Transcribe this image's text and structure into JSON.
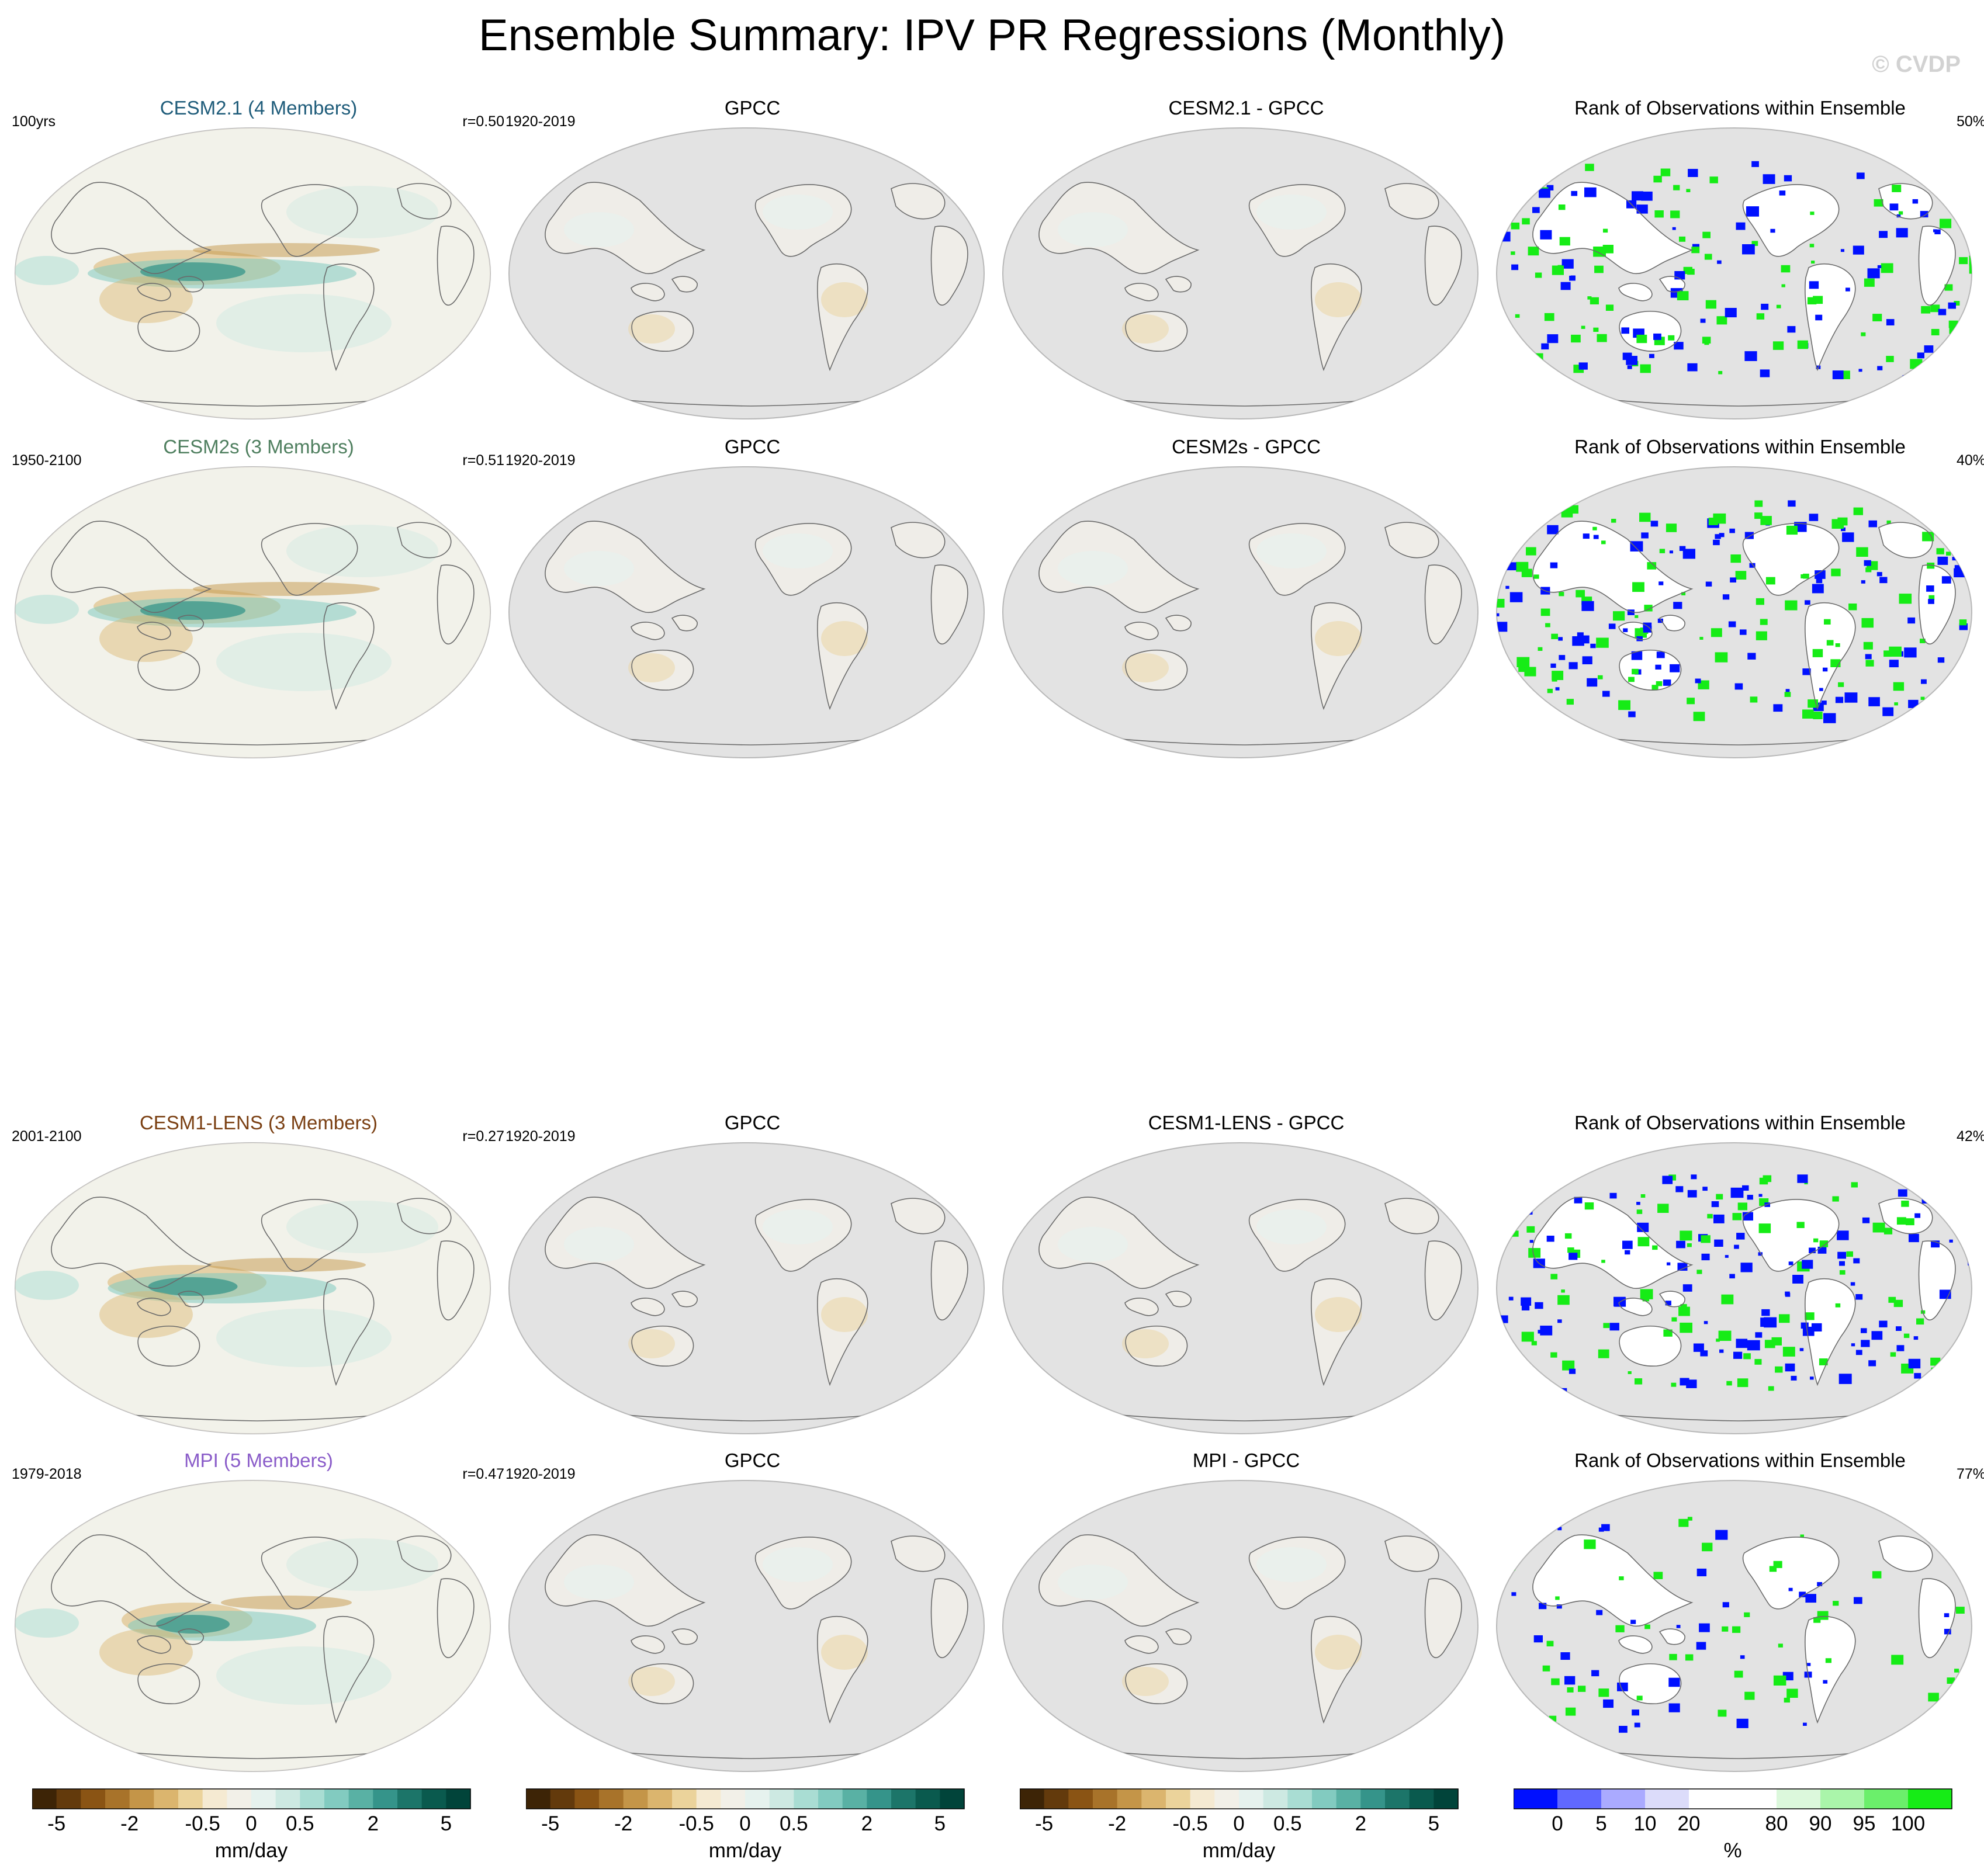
{
  "title": "Ensemble Summary: IPV PR Regressions (Monthly)",
  "watermark": "© CVDP",
  "rows": [
    {
      "model": {
        "title": "CESM2.1 (4 Members)",
        "color": "#1f5c7a",
        "left": "100yrs",
        "right": "r=0.50"
      },
      "obs": {
        "title": "GPCC",
        "left": "1920-2019"
      },
      "diff": {
        "title": "CESM2.1 - GPCC"
      },
      "rank": {
        "title": "Rank of Observations within Ensemble",
        "right": "50%"
      }
    },
    {
      "model": {
        "title": "CESM2s (3 Members)",
        "color": "#4f7f5f",
        "left": "1950-2100",
        "right": "r=0.51"
      },
      "obs": {
        "title": "GPCC",
        "left": "1920-2019"
      },
      "diff": {
        "title": "CESM2s - GPCC"
      },
      "rank": {
        "title": "Rank of Observations within Ensemble",
        "right": "40%"
      }
    },
    {
      "model": {
        "title": "CESM1-LENS (3 Members)",
        "color": "#7a3f12",
        "left": "2001-2100",
        "right": "r=0.27"
      },
      "obs": {
        "title": "GPCC",
        "left": "1920-2019"
      },
      "diff": {
        "title": "CESM1-LENS - GPCC"
      },
      "rank": {
        "title": "Rank of Observations within Ensemble",
        "right": "42%"
      }
    },
    {
      "model": {
        "title": "MPI (5 Members)",
        "color": "#8a5cc9",
        "left": "1979-2018",
        "right": "r=0.47"
      },
      "obs": {
        "title": "GPCC",
        "left": "1920-2019"
      },
      "diff": {
        "title": "MPI - GPCC"
      },
      "rank": {
        "title": "Rank of Observations within Ensemble",
        "right": "77%"
      }
    }
  ],
  "colorbars": {
    "pr": {
      "unit": "mm/day",
      "ticks": [
        "-5",
        "-2",
        "-0.5",
        "0",
        "0.5",
        "2",
        "5"
      ],
      "colors": [
        "#3d2406",
        "#633a0c",
        "#8a5414",
        "#a8732a",
        "#c49548",
        "#dbb56e",
        "#ebd39b",
        "#f5ead2",
        "#f2f0e8",
        "#e6f2ee",
        "#cde9e2",
        "#a9ddd3",
        "#82cbc0",
        "#59b1a4",
        "#35948a",
        "#1c7569",
        "#0a5a4e",
        "#01443a"
      ]
    },
    "rank": {
      "unit": "%",
      "ticks": [
        "0",
        "5",
        "10",
        "20",
        "80",
        "90",
        "95",
        "100"
      ],
      "colors": [
        "#0010ff",
        "#6068ff",
        "#aaaaff",
        "#dcdcfa",
        "#ffffff",
        "#ffffff",
        "#dcf8dc",
        "#aaf5aa",
        "#6bef6b",
        "#16ec16"
      ]
    }
  }
}
